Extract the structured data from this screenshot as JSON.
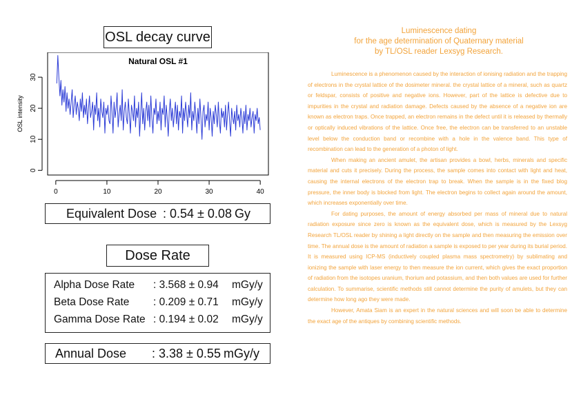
{
  "osl_title": "OSL decay curve",
  "chart_data": {
    "type": "line",
    "title": "Natural OSL #1",
    "xlabel": "",
    "ylabel": "OSL intensity",
    "xlim": [
      0,
      40
    ],
    "ylim": [
      0,
      38
    ],
    "x_ticks": [
      0,
      10,
      20,
      30,
      40
    ],
    "y_ticks": [
      0,
      10,
      20,
      30
    ],
    "grid": false,
    "color": "#2b3bd6",
    "series": [
      {
        "x": [
          0.2,
          0.4,
          0.6,
          0.8,
          1.0,
          1.2,
          1.4,
          1.6,
          1.8,
          2.0,
          2.2,
          2.4,
          2.6,
          2.8,
          3.0,
          3.2,
          3.4,
          3.6,
          3.8,
          4.0,
          4.2,
          4.4,
          4.6,
          4.8,
          5.0,
          5.2,
          5.4,
          5.6,
          5.8,
          6.0,
          6.2,
          6.4,
          6.6,
          6.8,
          7.0,
          7.2,
          7.4,
          7.6,
          7.8,
          8.0,
          8.2,
          8.4,
          8.6,
          8.8,
          9.0,
          9.2,
          9.4,
          9.6,
          9.8,
          10.0,
          10.2,
          10.4,
          10.6,
          10.8,
          11.0,
          11.2,
          11.4,
          11.6,
          11.8,
          12.0,
          12.2,
          12.4,
          12.6,
          12.8,
          13.0,
          13.2,
          13.4,
          13.6,
          13.8,
          14.0,
          14.2,
          14.4,
          14.6,
          14.8,
          15.0,
          15.2,
          15.4,
          15.6,
          15.8,
          16.0,
          16.2,
          16.4,
          16.6,
          16.8,
          17.0,
          17.2,
          17.4,
          17.6,
          17.8,
          18.0,
          18.2,
          18.4,
          18.6,
          18.8,
          19.0,
          19.2,
          19.4,
          19.6,
          19.8,
          20.0,
          20.2,
          20.4,
          20.6,
          20.8,
          21.0,
          21.2,
          21.4,
          21.6,
          21.8,
          22.0,
          22.2,
          22.4,
          22.6,
          22.8,
          23.0,
          23.2,
          23.4,
          23.6,
          23.8,
          24.0,
          24.2,
          24.4,
          24.6,
          24.8,
          25.0,
          25.2,
          25.4,
          25.6,
          25.8,
          26.0,
          26.2,
          26.4,
          26.6,
          26.8,
          27.0,
          27.2,
          27.4,
          27.6,
          27.8,
          28.0,
          28.2,
          28.4,
          28.6,
          28.8,
          29.0,
          29.2,
          29.4,
          29.6,
          29.8,
          30.0,
          30.2,
          30.4,
          30.6,
          30.8,
          31.0,
          31.2,
          31.4,
          31.6,
          31.8,
          32.0,
          32.2,
          32.4,
          32.6,
          32.8,
          33.0,
          33.2,
          33.4,
          33.6,
          33.8,
          34.0,
          34.2,
          34.4,
          34.6,
          34.8,
          35.0,
          35.2,
          35.4,
          35.6,
          35.8,
          36.0,
          36.2,
          36.4,
          36.6,
          36.8,
          37.0,
          37.2,
          37.4,
          37.6,
          37.8,
          38.0,
          38.2,
          38.4,
          38.6,
          38.8,
          39.0,
          39.2,
          39.4,
          39.6,
          39.8,
          40.0
        ],
        "y": [
          28,
          37,
          30,
          24,
          29,
          21,
          26,
          22,
          27,
          19,
          25,
          20,
          23,
          18,
          22,
          26,
          17,
          21,
          24,
          18,
          22,
          20,
          16,
          23,
          19,
          25,
          17,
          21,
          18,
          23,
          15,
          20,
          24,
          17,
          19,
          22,
          13,
          21,
          18,
          25,
          16,
          20,
          14,
          23,
          19,
          17,
          22,
          12,
          20,
          18,
          21,
          16,
          15,
          24,
          19,
          12,
          22,
          17,
          20,
          25,
          14,
          18,
          21,
          16,
          26,
          13,
          19,
          22,
          17,
          15,
          23,
          18,
          12,
          21,
          19,
          16,
          24,
          14,
          20,
          17,
          22,
          11,
          18,
          25,
          15,
          20,
          13,
          19,
          22,
          16,
          21,
          14,
          24,
          17,
          12,
          20,
          18,
          23,
          15,
          19,
          16,
          22,
          13,
          20,
          18,
          24,
          14,
          21,
          17,
          11,
          19,
          23,
          16,
          20,
          14,
          18,
          22,
          15,
          21,
          13,
          19,
          17,
          24,
          12,
          20,
          16,
          22,
          18,
          14,
          21,
          17,
          25,
          13,
          19,
          16,
          22,
          18,
          12,
          20,
          15,
          23,
          17,
          10,
          19,
          21,
          14,
          18,
          16,
          22,
          13,
          20,
          17,
          11,
          19,
          15,
          21,
          18,
          14,
          22,
          16,
          12,
          20,
          17,
          19,
          14,
          21,
          13,
          18,
          22,
          16,
          11,
          20,
          17,
          15,
          19,
          13,
          21,
          16,
          18,
          14,
          20,
          17,
          12,
          19,
          15,
          21,
          13,
          18,
          16,
          20,
          14,
          17,
          19,
          12,
          18,
          16,
          20,
          15,
          17,
          13
        ]
      }
    ]
  },
  "equivalent": {
    "label": "Equivalent Dose",
    "value": ": 0.54 ± 0.08",
    "unit": "Gy"
  },
  "dose_rate_title": "Dose Rate",
  "rates": [
    {
      "label": "Alpha Dose Rate",
      "value": ": 3.568 ± 0.94",
      "unit": "mGy/y"
    },
    {
      "label": "Beta Dose Rate",
      "value": ": 0.209 ± 0.71",
      "unit": "mGy/y"
    },
    {
      "label": "Gamma Dose Rate",
      "value": ": 0.194 ± 0.02",
      "unit": "mGy/y"
    }
  ],
  "annual": {
    "label": "Annual Dose",
    "value": ": 3.38 ± 0.55",
    "unit": "mGy/y"
  },
  "article": {
    "title_lines": [
      "Luminescence dating",
      "for the age determination of Quaternary material",
      "by TL/OSL reader Lexsyg Research."
    ],
    "paragraphs": [
      "Luminescence is a phenomenon caused by the interaction of ionising radiation and the trapping of electrons in the crystal lattice of the dosimeter mineral. the crystal lattice of a mineral, such as quartz or feldspar, consists of positive and negative ions. However, part of the lattice is defective due to impurities in the crystal and radiation damage. Defects caused by the absence of a negative ion are known as electron traps. Once trapped, an electron remains in the defect until it is released by thermally or optically induced vibrations of the lattice. Once free, the electron can be transferred to an unstable level below the conduction band or recombine with a hole in the valence band. This type of recombination can lead to the generation of a photon of light.",
      "When making an ancient amulet, the artisan provides a bowl, herbs, minerals and specific material and cuts it precisely. During the process, the sample comes into contact with light and heat, causing the internal electrons of the electron trap to break. When the sample is in the fixed blog pressure, the inner body is blocked from light. The electron begins to collect again around the amount, which increases exponentially over time.",
      "For dating purposes, the amount of energy absorbed per mass of mineral due to natural radiation exposure since zero is known as the equivalent dose, which is measured by the Lexsyg Research TL/OSL reader by shining a light directly on the sample and then measuring the emission over time. The annual dose is the amount of radiation a sample is exposed to per year during its burial period. It is measured using ICP-MS (inductively coupled plasma mass spectrometry) by sublimating and ionizing the sample with laser energy to then measure the ion current, which gives the exact proportion of radiation from the isotopes uranium, thorium and potassium, and then both values are used for further calculation. To summarise, scientific methods still cannot determine the purity of amulets, but they can determine how long ago they were made.",
      "However, Amata Siam is an expert in the natural sciences and will soon be able to determine the exact age of the antiques by combining scientific methods."
    ]
  }
}
